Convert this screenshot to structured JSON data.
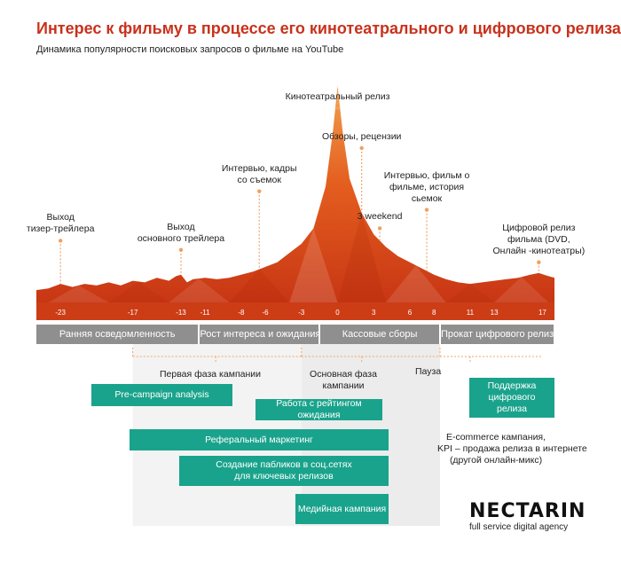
{
  "title": "Интерес к фильму в процессе его кинотеатрального и цифрового релиза",
  "subtitle": "Динамика популярности поисковых запросов о фильме на YouTube",
  "chart_data": {
    "type": "area",
    "x": [
      -23,
      -17,
      -13,
      -11,
      -8,
      -6,
      -3,
      0,
      3,
      6,
      8,
      11,
      13,
      17
    ],
    "tick_labels": [
      "-23",
      "-17",
      "-13",
      "-11",
      "-8",
      "-6",
      "-3",
      "0",
      "3",
      "6",
      "8",
      "11",
      "13",
      "17"
    ],
    "xlim": [
      -25,
      18
    ],
    "profile": [
      [
        -25,
        8
      ],
      [
        -24,
        9
      ],
      [
        -23,
        12
      ],
      [
        -22,
        10
      ],
      [
        -21,
        12
      ],
      [
        -20,
        11
      ],
      [
        -19,
        13
      ],
      [
        -18,
        11
      ],
      [
        -17,
        14
      ],
      [
        -16,
        13
      ],
      [
        -15,
        16
      ],
      [
        -14,
        14
      ],
      [
        -13.4,
        17
      ],
      [
        -13,
        18
      ],
      [
        -12.5,
        13
      ],
      [
        -12,
        15
      ],
      [
        -11,
        16
      ],
      [
        -10,
        15
      ],
      [
        -9,
        16
      ],
      [
        -8,
        18
      ],
      [
        -7,
        20
      ],
      [
        -6,
        23
      ],
      [
        -5,
        26
      ],
      [
        -4,
        32
      ],
      [
        -3,
        38
      ],
      [
        -2,
        48
      ],
      [
        -1,
        75
      ],
      [
        -0.4,
        110
      ],
      [
        0,
        140
      ],
      [
        0.4,
        112
      ],
      [
        1,
        80
      ],
      [
        2,
        58
      ],
      [
        3,
        44
      ],
      [
        4,
        36
      ],
      [
        5,
        30
      ],
      [
        6,
        26
      ],
      [
        7,
        22
      ],
      [
        8,
        18
      ],
      [
        9,
        15
      ],
      [
        10,
        13
      ],
      [
        11,
        12
      ],
      [
        12,
        13
      ],
      [
        13,
        14
      ],
      [
        14,
        15
      ],
      [
        15,
        16
      ],
      [
        16,
        18
      ],
      [
        16.7,
        19
      ],
      [
        17.5,
        17
      ],
      [
        18,
        16
      ]
    ],
    "annotations": [
      {
        "x": -23,
        "value": 40,
        "text": [
          "Выход",
          "тизер-трейлера"
        ]
      },
      {
        "x": -13,
        "value": 34,
        "text": [
          "Выход",
          "основного трейлера"
        ]
      },
      {
        "x": -6.5,
        "value": 72,
        "text": [
          "Интервью, кадры",
          "со съемок"
        ]
      },
      {
        "x": 0,
        "value": 126,
        "text": [
          "Кинотеатральный релиз"
        ]
      },
      {
        "x": 2,
        "value": 100,
        "text": [
          "Обзоры, рецензии"
        ]
      },
      {
        "x": 3.5,
        "value": 48,
        "text": [
          "3 weekend"
        ]
      },
      {
        "x": 7.4,
        "value": 60,
        "text": [
          "Интервью, фильм о",
          "фильме, история",
          "сьемок"
        ]
      },
      {
        "x": 16.7,
        "value": 26,
        "text": [
          "Цифровой релиз",
          "фильма (DVD,",
          "Онлайн -кинотеатры)"
        ]
      }
    ]
  },
  "phases": [
    {
      "label": "Ранняя осведомленность",
      "from": -25,
      "to": -11.5
    },
    {
      "label": "Рост интереса и ожидания",
      "from": -11.5,
      "to": -1.5
    },
    {
      "label": "Кассовые сборы",
      "from": -1.5,
      "to": 8.5
    },
    {
      "label": "Прокат цифрового релиза",
      "from": 8.5,
      "to": 18
    }
  ],
  "stage_labels": [
    {
      "text": [
        "Первая фаза кампании"
      ]
    },
    {
      "text": [
        "Основная фаза",
        "кампании"
      ]
    },
    {
      "text": [
        "Пауза"
      ]
    }
  ],
  "activities": [
    {
      "label": [
        "Pre-campaign analysis"
      ]
    },
    {
      "label": [
        "Работа с рейтингом ожидания"
      ]
    },
    {
      "label": [
        "Реферальный маркетинг"
      ]
    },
    {
      "label": [
        "Создание пабликов в соц.сетях",
        "для ключевых релизов"
      ]
    },
    {
      "label": [
        "Медийная кампания"
      ]
    },
    {
      "label": [
        "Поддержка",
        "цифрового",
        "релиза"
      ]
    }
  ],
  "ecommerce_note": [
    "E-commerce кампания,",
    "KPI – продажа релиза в интернете",
    "(другой онлайн-микс)"
  ],
  "logo": {
    "name": "NECTARIN",
    "tagline": "full service digital agency"
  },
  "colors": {
    "accent": "#c8321c",
    "area_dark": "#d64416",
    "area_light": "#f39a4a",
    "phase_bar": "#8f8f8f",
    "activity": "#1aa38c",
    "axis_band": "#cc3d16",
    "dot": "#f0a060"
  }
}
